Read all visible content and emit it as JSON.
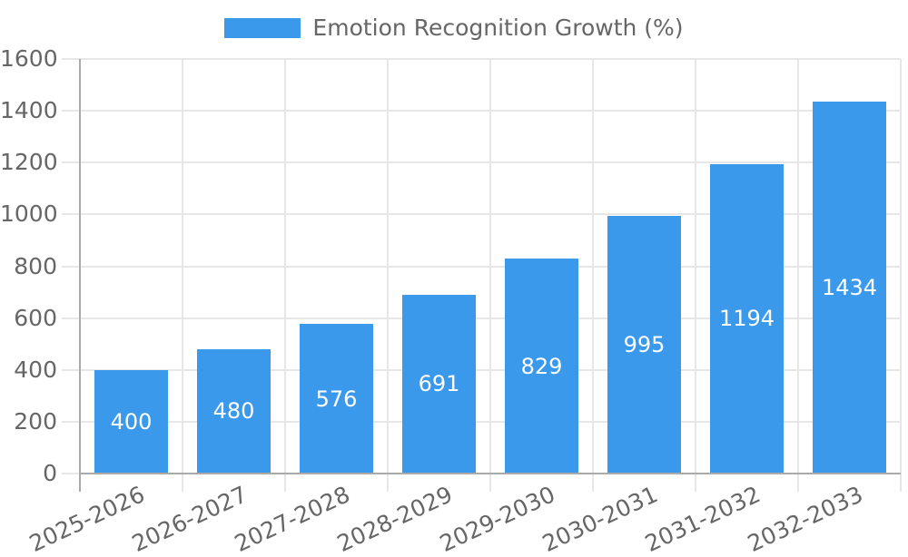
{
  "chart_data": {
    "type": "bar",
    "title": "",
    "legend": {
      "label": "Emotion Recognition Growth (%)",
      "position": "top"
    },
    "categories": [
      "2025-2026",
      "2026-2027",
      "2027-2028",
      "2028-2029",
      "2029-2030",
      "2030-2031",
      "2031-2032",
      "2032-2033"
    ],
    "series": [
      {
        "name": "Emotion Recognition Growth (%)",
        "values": [
          400,
          480,
          576,
          691,
          829,
          995,
          1194,
          1434
        ]
      }
    ],
    "value_labels_shown": true,
    "xlabel": "",
    "ylabel": "",
    "ylim": [
      0,
      1600
    ],
    "y_ticks": [
      0,
      200,
      400,
      600,
      800,
      1000,
      1200,
      1400,
      1600
    ],
    "grid": true,
    "x_label_rotation_deg": -25,
    "legend_position": "top",
    "colors": {
      "bar": "#3b99ec",
      "value_label": "#ffffff",
      "axis_text": "#666666",
      "grid_line": "#e7e7e7",
      "axis_line": "#aaaaaa",
      "background": "#ffffff"
    }
  }
}
